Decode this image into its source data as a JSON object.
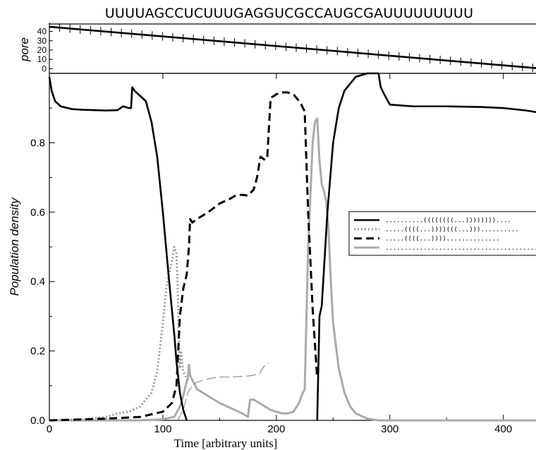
{
  "header": {
    "sequence": "UUUUAGCCUCUUUGAGGUCGCCAUGCGAUUUUUUUUU"
  },
  "chart_data": [
    {
      "type": "line",
      "panel": "top",
      "ylabel": "pore",
      "xlim": [
        0,
        435
      ],
      "ylim": [
        -5,
        48
      ],
      "yticks": [
        0,
        10,
        20,
        30,
        40
      ],
      "series": [
        {
          "style": "solid-black-with-crossbars",
          "x": [
            0,
            435
          ],
          "y": [
            45,
            0
          ]
        }
      ]
    },
    {
      "type": "line",
      "panel": "main",
      "xlabel": "Time [arbitrary units]",
      "ylabel": "Population density",
      "xlim": [
        0,
        435
      ],
      "ylim": [
        0,
        1.0
      ],
      "xticks": [
        0,
        100,
        200,
        300,
        400
      ],
      "yticks": [
        0.0,
        0.2,
        0.4,
        0.6,
        0.8
      ],
      "ytick_labels": [
        "0.0",
        "0.2",
        "0.4",
        "0.6",
        "0.8"
      ],
      "legend_position": "right",
      "series": [
        {
          "name": "..........((((((((...))))))))....",
          "color": "#000000",
          "style": "solid",
          "x": [
            0,
            2,
            5,
            10,
            20,
            30,
            40,
            50,
            60,
            65,
            70,
            72,
            73,
            75,
            80,
            85,
            90,
            95,
            100,
            105,
            110,
            112,
            115,
            118,
            121
          ],
          "y": [
            0.99,
            0.95,
            0.92,
            0.905,
            0.897,
            0.895,
            0.894,
            0.893,
            0.894,
            0.905,
            0.9,
            0.9,
            0.96,
            0.95,
            0.935,
            0.92,
            0.86,
            0.76,
            0.6,
            0.42,
            0.25,
            0.17,
            0.08,
            0.03,
            0.0
          ],
          "x2": [
            236,
            238,
            240,
            245,
            250,
            255,
            260,
            270,
            280,
            290,
            292,
            295,
            300,
            320,
            350,
            380,
            400,
            420,
            435
          ],
          "y2": [
            0.0,
            0.3,
            0.33,
            0.6,
            0.8,
            0.9,
            0.95,
            0.99,
            1.0,
            1.0,
            0.96,
            0.94,
            0.91,
            0.905,
            0.905,
            0.903,
            0.9,
            0.893,
            0.885
          ]
        },
        {
          "name": ".....((((...))))(((...)))..........",
          "color": "#999999",
          "style": "dotted",
          "x": [
            0,
            30,
            50,
            60,
            70,
            80,
            90,
            95,
            100,
            103,
            106,
            108,
            110,
            112,
            113,
            114,
            115,
            116,
            118,
            121,
            122
          ],
          "y": [
            0.0,
            0.003,
            0.01,
            0.02,
            0.025,
            0.04,
            0.08,
            0.14,
            0.28,
            0.38,
            0.43,
            0.46,
            0.5,
            0.48,
            0.4,
            0.25,
            0.15,
            0.2,
            0.14,
            0.12,
            0.11
          ]
        },
        {
          "name": ".....((((...))))..............",
          "color": "#000000",
          "style": "dashed",
          "x": [
            0,
            50,
            80,
            100,
            108,
            112,
            115,
            118,
            121,
            123,
            124,
            126,
            130,
            140,
            150,
            160,
            165,
            170,
            175,
            180,
            183,
            185,
            186,
            190,
            192,
            195,
            198,
            200,
            205,
            210,
            215,
            220,
            222,
            225,
            228,
            232,
            236
          ],
          "y": [
            0.0,
            0.005,
            0.01,
            0.025,
            0.05,
            0.1,
            0.3,
            0.38,
            0.42,
            0.5,
            0.58,
            0.57,
            0.58,
            0.6,
            0.625,
            0.64,
            0.65,
            0.65,
            0.648,
            0.665,
            0.7,
            0.74,
            0.76,
            0.75,
            0.76,
            0.93,
            0.935,
            0.94,
            0.945,
            0.945,
            0.94,
            0.92,
            0.91,
            0.89,
            0.6,
            0.32,
            0.12
          ]
        },
        {
          "name": "...........................................",
          "color": "#aaaaaa",
          "style": "solid-thick",
          "x": [
            0,
            80,
            100,
            110,
            115,
            118,
            120,
            122,
            123,
            124,
            127,
            130,
            140,
            150,
            160,
            170,
            175,
            176,
            177,
            180,
            185,
            190,
            195,
            200,
            205,
            210,
            215,
            220,
            222,
            225,
            228,
            230,
            232,
            234,
            236,
            238,
            240,
            242,
            244,
            246,
            248,
            250,
            255,
            260,
            265,
            270,
            280,
            290,
            300,
            320,
            350,
            380,
            435
          ],
          "y": [
            0.0,
            0.0,
            0.003,
            0.01,
            0.04,
            0.07,
            0.1,
            0.12,
            0.16,
            0.13,
            0.11,
            0.09,
            0.07,
            0.05,
            0.035,
            0.02,
            0.01,
            0.04,
            0.06,
            0.06,
            0.05,
            0.04,
            0.03,
            0.025,
            0.02,
            0.02,
            0.025,
            0.05,
            0.07,
            0.09,
            0.5,
            0.65,
            0.8,
            0.86,
            0.87,
            0.75,
            0.68,
            0.66,
            0.63,
            0.55,
            0.4,
            0.28,
            0.15,
            0.08,
            0.04,
            0.02,
            0.005,
            0.0,
            0.0,
            0.0,
            0.0,
            0.0,
            0.0
          ]
        },
        {
          "style": "thin-long-dash-gray",
          "color": "#888888",
          "x": [
            113,
            118,
            122,
            126,
            130,
            140,
            150,
            160,
            170,
            175,
            180,
            185,
            188,
            190,
            193
          ],
          "y": [
            0.0,
            0.03,
            0.08,
            0.1,
            0.11,
            0.12,
            0.125,
            0.125,
            0.127,
            0.128,
            0.13,
            0.135,
            0.15,
            0.16,
            0.165
          ]
        }
      ]
    }
  ]
}
